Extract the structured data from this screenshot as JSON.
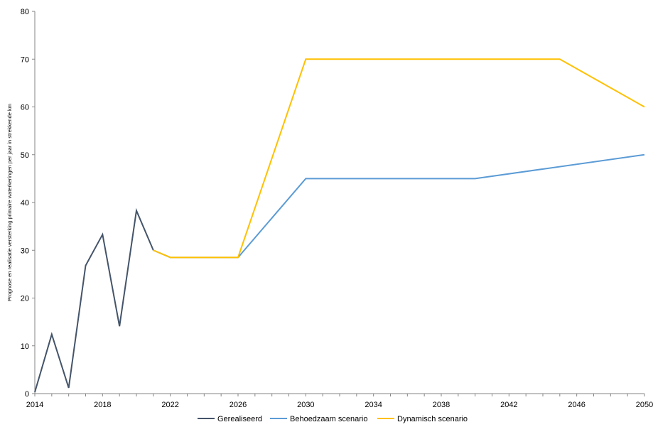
{
  "chart_data": {
    "type": "line",
    "title": "",
    "xlabel": "",
    "ylabel": "Prognose en realisatie versterking primaire waterkeringen per jaar in strekkende km",
    "xlim": [
      2014,
      2050
    ],
    "ylim": [
      0,
      80
    ],
    "x_ticks": [
      "2014",
      "2018",
      "2022",
      "2026",
      "2030",
      "2034",
      "2038",
      "2042",
      "2046",
      "2050"
    ],
    "y_ticks": [
      "0",
      "10",
      "20",
      "30",
      "40",
      "50",
      "60",
      "70",
      "80"
    ],
    "grid": false,
    "legend_position": "bottom",
    "series": [
      {
        "name": "Gerealiseerd",
        "color": "#44546a",
        "points": [
          [
            2014,
            0.3
          ],
          [
            2015,
            12.4
          ],
          [
            2016,
            1.2
          ],
          [
            2017,
            26.8
          ],
          [
            2018,
            33.3
          ],
          [
            2019,
            14.1
          ],
          [
            2020,
            38.3
          ],
          [
            2021,
            30.0
          ]
        ]
      },
      {
        "name": "Behoedzaam scenario",
        "color": "#5b9bd5",
        "points": [
          [
            2021,
            30.0
          ],
          [
            2022,
            28.5
          ],
          [
            2026,
            28.5
          ],
          [
            2030,
            45.0
          ],
          [
            2040,
            45.0
          ],
          [
            2050,
            50.0
          ]
        ]
      },
      {
        "name": "Dynamisch scenario",
        "color": "#ffc000",
        "points": [
          [
            2021,
            30.0
          ],
          [
            2022,
            28.5
          ],
          [
            2026,
            28.5
          ],
          [
            2030,
            70.0
          ],
          [
            2045,
            70.0
          ],
          [
            2050,
            60.0
          ]
        ]
      }
    ]
  }
}
